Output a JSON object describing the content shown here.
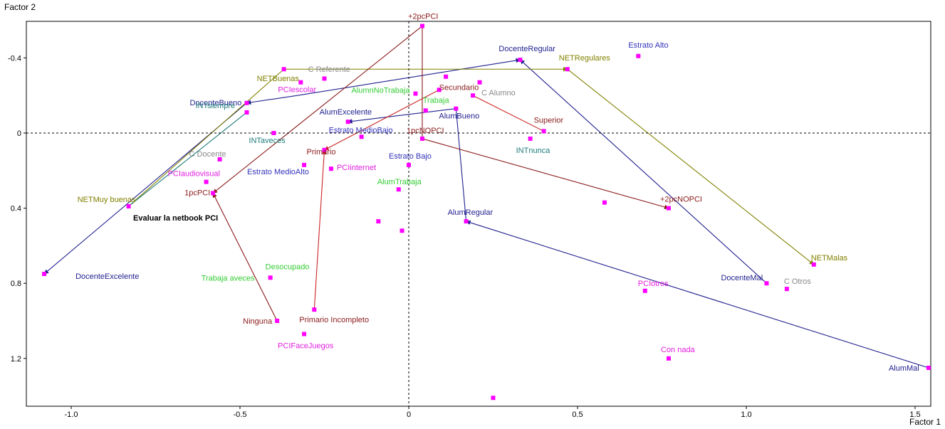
{
  "chart_data": {
    "type": "scatter",
    "title": "",
    "xlabel": "Factor 1",
    "ylabel": "Factor 2",
    "xlim": [
      -1.1,
      1.55
    ],
    "ylim": [
      1.45,
      -0.58
    ],
    "y_reversed": true,
    "xticks": [
      -1.0,
      -0.5,
      0,
      0.5,
      1.0,
      1.5
    ],
    "xtick_labels": [
      "-1.0",
      "-0.5",
      "0",
      "0.5",
      "1.0",
      "1.5"
    ],
    "yticks": [
      -0.4,
      0,
      0.4,
      0.8,
      1.2
    ],
    "ytick_labels": [
      "-0.4",
      "0",
      "0.4",
      "0.8",
      "1.2"
    ],
    "grid": false,
    "reference_lines": [
      "x=0 dashed",
      "y=0 dashed"
    ],
    "marker_color": "#ff00ff",
    "annotation": "Evaluar la netbook PCI",
    "series_colors": {
      "docente": "#1f1f8f",
      "net": "#808000",
      "alumno": "#1f1f8f",
      "pc": "#8b1a1a",
      "nivel": "#8b1a1a",
      "int": "#1e7b7b",
      "pcuso": "#e020e0",
      "estrato": "#3333bb",
      "trabajo": "#33cc33",
      "c": "#888888"
    },
    "points": [
      {
        "label": "+2pcPCI",
        "x": 0.04,
        "y": -0.57,
        "group": "pc"
      },
      {
        "label": "DocenteRegular",
        "x": 0.33,
        "y": -0.39,
        "group": "docente"
      },
      {
        "label": "NETRegulares",
        "x": 0.47,
        "y": -0.34,
        "group": "net"
      },
      {
        "label": "Estrato Alto",
        "x": 0.68,
        "y": -0.41,
        "group": "estrato"
      },
      {
        "label": "C Referente",
        "x": -0.37,
        "y": -0.34,
        "group": "c"
      },
      {
        "label": "NETBuenas",
        "x": -0.37,
        "y": -0.34,
        "group": "net"
      },
      {
        "label": "PCIescolar",
        "x": -0.32,
        "y": -0.27,
        "group": "pcuso"
      },
      {
        "label": "AlumnNoTrabaja",
        "x": 0.02,
        "y": -0.21,
        "group": "trabajo"
      },
      {
        "label": "",
        "x": -0.25,
        "y": -0.29,
        "group": "none"
      },
      {
        "label": "",
        "x": 0.11,
        "y": -0.3,
        "group": "none"
      },
      {
        "label": "",
        "x": 0.21,
        "y": -0.27,
        "group": "none"
      },
      {
        "label": "Secundario",
        "x": 0.09,
        "y": -0.23,
        "group": "nivel"
      },
      {
        "label": "C Alumno",
        "x": 0.19,
        "y": -0.2,
        "group": "c"
      },
      {
        "label": "DocenteBueno",
        "x": -0.48,
        "y": -0.16,
        "group": "docente"
      },
      {
        "label": "INTsiempre",
        "x": -0.48,
        "y": -0.11,
        "group": "int"
      },
      {
        "label": "AlumExcelente",
        "x": -0.18,
        "y": -0.06,
        "group": "alumno"
      },
      {
        "label": "Trabaja",
        "x": 0.05,
        "y": -0.12,
        "group": "trabajo"
      },
      {
        "label": "AlumBueno",
        "x": 0.14,
        "y": -0.13,
        "group": "alumno"
      },
      {
        "label": "Superior",
        "x": 0.4,
        "y": -0.01,
        "group": "nivel"
      },
      {
        "label": "Estrato MedioBajo",
        "x": -0.14,
        "y": 0.02,
        "group": "estrato"
      },
      {
        "label": "1pcNOPCI",
        "x": 0.04,
        "y": 0.03,
        "group": "pc"
      },
      {
        "label": "INTaveces",
        "x": -0.4,
        "y": 0.0,
        "group": "int"
      },
      {
        "label": "INTnunca",
        "x": 0.36,
        "y": 0.03,
        "group": "int"
      },
      {
        "label": "Primario",
        "x": -0.25,
        "y": 0.09,
        "group": "nivel"
      },
      {
        "label": "C Docente",
        "x": -0.56,
        "y": 0.14,
        "group": "c"
      },
      {
        "label": "Estrato Bajo",
        "x": 0.0,
        "y": 0.17,
        "group": "estrato"
      },
      {
        "label": "Estrato MedioAlto",
        "x": -0.31,
        "y": 0.17,
        "group": "estrato"
      },
      {
        "label": "PCIinternet",
        "x": -0.23,
        "y": 0.19,
        "group": "pcuso"
      },
      {
        "label": "PCIaudiovisual",
        "x": -0.6,
        "y": 0.26,
        "group": "pcuso"
      },
      {
        "label": "AlumTrabaja",
        "x": -0.03,
        "y": 0.3,
        "group": "trabajo"
      },
      {
        "label": "1pcPCI",
        "x": -0.58,
        "y": 0.32,
        "group": "pc"
      },
      {
        "label": "NETMuy buenas",
        "x": -0.83,
        "y": 0.39,
        "group": "net"
      },
      {
        "label": "",
        "x": 0.58,
        "y": 0.37,
        "group": "none"
      },
      {
        "label": "+2pcNOPCI",
        "x": 0.77,
        "y": 0.4,
        "group": "pc"
      },
      {
        "label": "AlumRegular",
        "x": 0.17,
        "y": 0.47,
        "group": "alumno"
      },
      {
        "label": "",
        "x": -0.09,
        "y": 0.47,
        "group": "none"
      },
      {
        "label": "",
        "x": -0.02,
        "y": 0.52,
        "group": "none"
      },
      {
        "label": "NETMalas",
        "x": 1.2,
        "y": 0.7,
        "group": "net"
      },
      {
        "label": "DocenteExcelente",
        "x": -1.08,
        "y": 0.75,
        "group": "docente"
      },
      {
        "label": "Desocupado",
        "x": -0.41,
        "y": 0.77,
        "group": "trabajo"
      },
      {
        "label": "Trabaja aveces",
        "x": -0.41,
        "y": 0.77,
        "group": "trabajo"
      },
      {
        "label": "DocenteMal",
        "x": 1.06,
        "y": 0.8,
        "group": "docente"
      },
      {
        "label": "C Otros",
        "x": 1.12,
        "y": 0.83,
        "group": "c"
      },
      {
        "label": "PCIotros",
        "x": 0.7,
        "y": 0.84,
        "group": "pcuso"
      },
      {
        "label": "Primario Incompleto",
        "x": -0.28,
        "y": 0.94,
        "group": "nivel"
      },
      {
        "label": "Ninguna",
        "x": -0.39,
        "y": 1.0,
        "group": "pc"
      },
      {
        "label": "PCIFaceJuegos",
        "x": -0.31,
        "y": 1.07,
        "group": "pcuso"
      },
      {
        "label": "Con nada",
        "x": 0.77,
        "y": 1.2,
        "group": "pcuso"
      },
      {
        "label": "AlumMal",
        "x": 1.54,
        "y": 1.25,
        "group": "alumno"
      },
      {
        "label": "",
        "x": 0.25,
        "y": 1.41,
        "group": "none"
      }
    ],
    "paths": [
      {
        "group": "docente",
        "color": "#1f1f8f",
        "from": [
          -0.33,
          -0.2
        ],
        "to": [
          -0.48,
          -0.16
        ],
        "arrow": true
      },
      {
        "group": "docente",
        "color": "#1f1f8f",
        "from": [
          -0.33,
          -0.2
        ],
        "to": [
          0.33,
          -0.39
        ],
        "arrow": true
      },
      {
        "group": "docente",
        "color": "#1f1f8f",
        "from": [
          1.06,
          0.8
        ],
        "to": [
          0.33,
          -0.39
        ],
        "arrow": true
      },
      {
        "group": "docente",
        "color": "#1f1f8f",
        "from": [
          -0.48,
          -0.16
        ],
        "to": [
          -1.08,
          0.75
        ],
        "arrow": true
      },
      {
        "group": "net",
        "color": "#808000",
        "from": [
          -0.37,
          -0.34
        ],
        "to": [
          0.47,
          -0.34
        ],
        "arrow": true
      },
      {
        "group": "net",
        "color": "#808000",
        "from": [
          0.47,
          -0.34
        ],
        "to": [
          1.2,
          0.7
        ],
        "arrow": true
      },
      {
        "group": "net",
        "color": "#808000",
        "from": [
          -0.37,
          -0.34
        ],
        "to": [
          -0.83,
          0.39
        ],
        "arrow": false
      },
      {
        "group": "int",
        "color": "#1e7b7b",
        "from": [
          -0.48,
          -0.11
        ],
        "to": [
          -0.83,
          0.39
        ],
        "arrow": false
      },
      {
        "group": "alumno",
        "color": "#1f1f8f",
        "from": [
          0.14,
          -0.13
        ],
        "to": [
          -0.18,
          -0.06
        ],
        "arrow": true
      },
      {
        "group": "alumno",
        "color": "#1f1f8f",
        "from": [
          0.14,
          -0.13
        ],
        "to": [
          0.17,
          0.47
        ],
        "arrow": false
      },
      {
        "group": "alumno",
        "color": "#1f1f8f",
        "from": [
          1.54,
          1.25
        ],
        "to": [
          0.17,
          0.47
        ],
        "arrow": true
      },
      {
        "group": "pc",
        "color": "#8b1a1a",
        "from": [
          0.04,
          -0.57
        ],
        "to": [
          -0.58,
          0.32
        ],
        "arrow": true
      },
      {
        "group": "pc",
        "color": "#8b1a1a",
        "from": [
          0.04,
          -0.57
        ],
        "to": [
          0.04,
          0.03
        ],
        "arrow": false
      },
      {
        "group": "pc",
        "color": "#8b1a1a",
        "from": [
          0.04,
          0.03
        ],
        "to": [
          0.77,
          0.4
        ],
        "arrow": true
      },
      {
        "group": "pc",
        "color": "#8b1a1a",
        "from": [
          -0.39,
          1.0
        ],
        "to": [
          -0.58,
          0.32
        ],
        "arrow": true
      },
      {
        "group": "nivel",
        "color": "#cc2222",
        "from": [
          0.09,
          -0.23
        ],
        "to": [
          -0.25,
          0.09
        ],
        "arrow": true
      },
      {
        "group": "nivel",
        "color": "#cc2222",
        "from": [
          -0.28,
          0.94
        ],
        "to": [
          -0.25,
          0.09
        ],
        "arrow": true
      },
      {
        "group": "nivel",
        "color": "#cc2222",
        "from": [
          0.19,
          -0.2
        ],
        "to": [
          0.4,
          -0.01
        ],
        "arrow": false
      }
    ]
  }
}
